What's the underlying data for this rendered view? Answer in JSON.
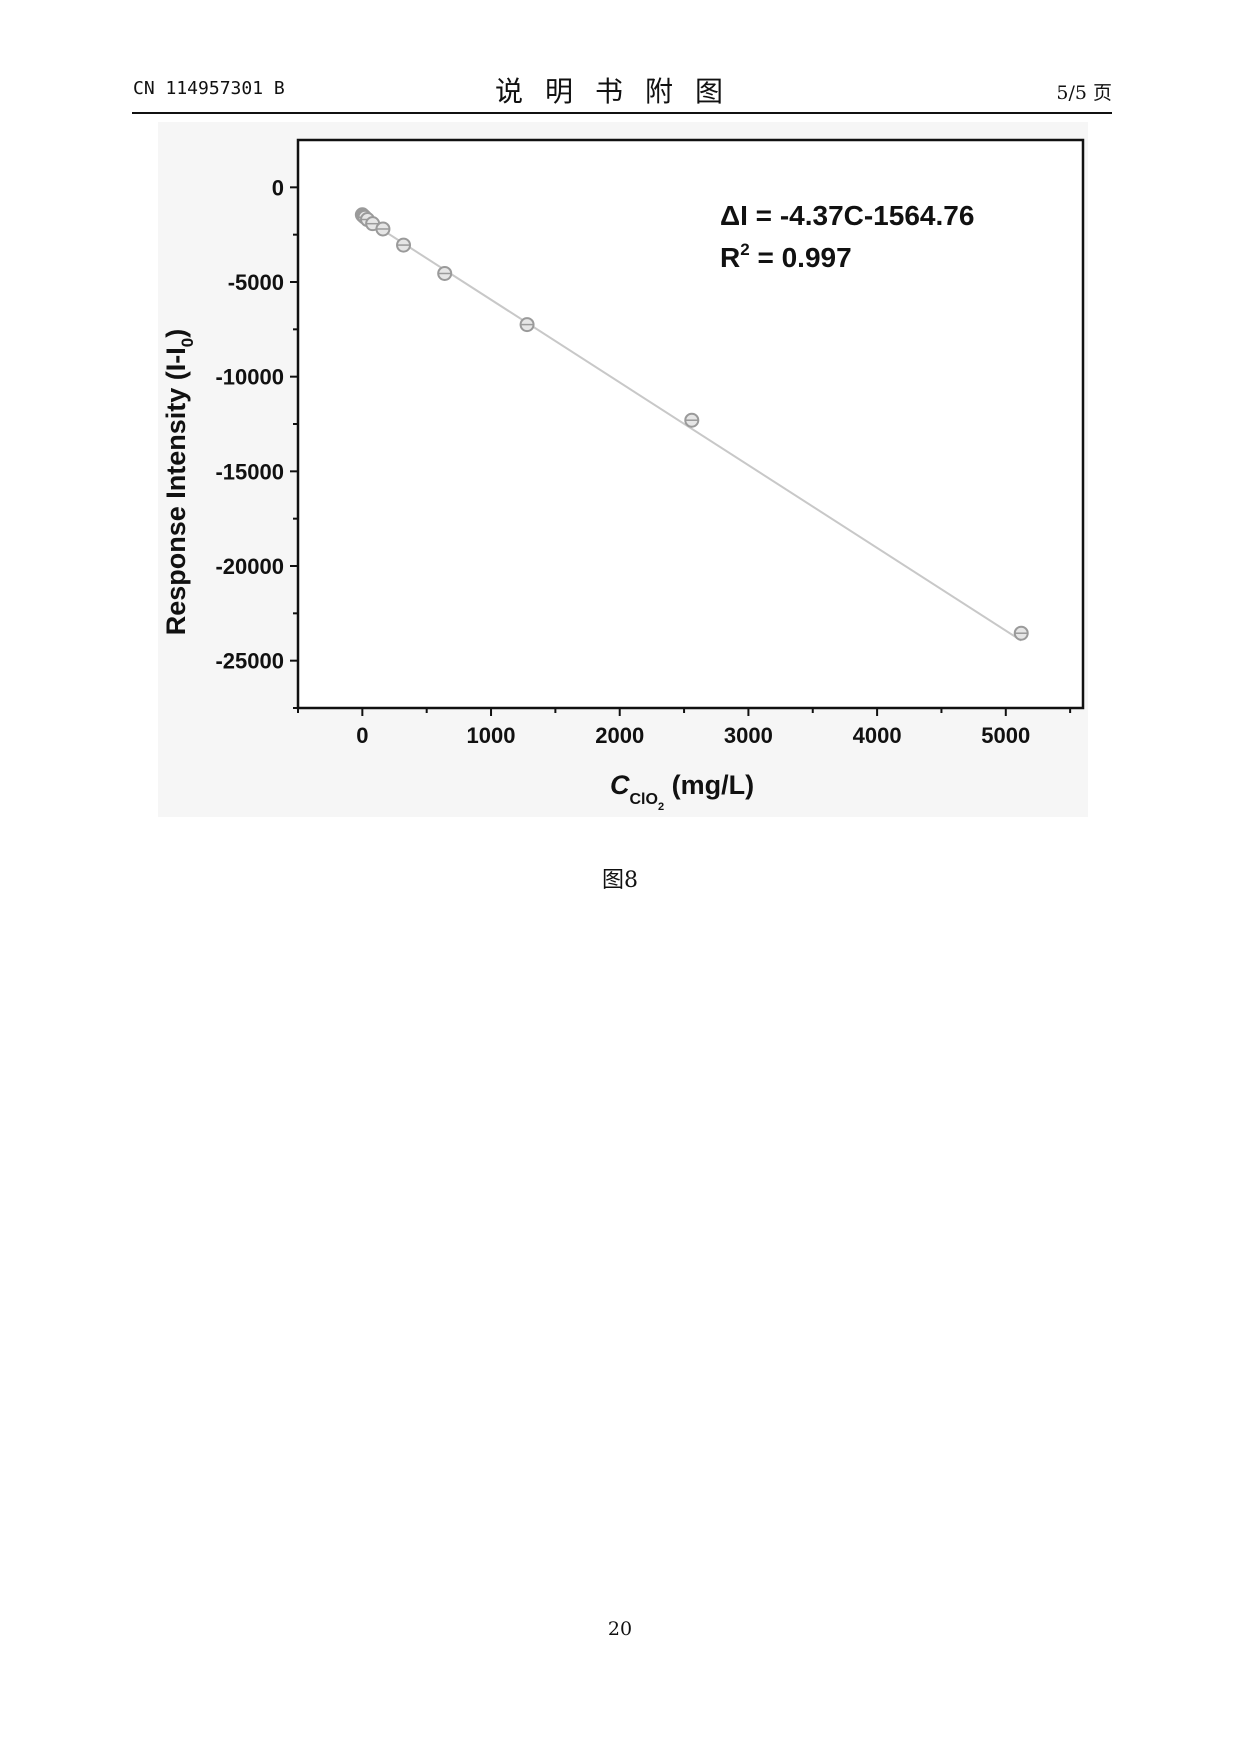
{
  "header": {
    "patent_number": "CN 114957301 B",
    "section_title": "说明书附图",
    "page_of": "5/5 页"
  },
  "caption": "图8",
  "page_number": "20",
  "chart_data": {
    "type": "scatter",
    "title": "",
    "xlabel": {
      "main": "C",
      "sub": "ClO",
      "subsub": "2",
      "unit": " (mg/L)"
    },
    "ylabel": {
      "main": "Response Intensity (I-I",
      "sub": "0",
      "close": ")"
    },
    "xlim": [
      -500,
      5600
    ],
    "ylim": [
      -27500,
      2500
    ],
    "x_ticks": [
      0,
      1000,
      2000,
      3000,
      4000,
      5000
    ],
    "y_ticks": [
      0,
      -5000,
      -10000,
      -15000,
      -20000,
      -25000
    ],
    "grid": false,
    "legend": "none",
    "series": [
      {
        "points": [
          {
            "x": 0,
            "y": -1450
          },
          {
            "x": 10,
            "y": -1520
          },
          {
            "x": 20,
            "y": -1580
          },
          {
            "x": 40,
            "y": -1700
          },
          {
            "x": 80,
            "y": -1920
          },
          {
            "x": 160,
            "y": -2200
          },
          {
            "x": 320,
            "y": -3050
          },
          {
            "x": 640,
            "y": -4550
          },
          {
            "x": 1280,
            "y": -7250
          },
          {
            "x": 2560,
            "y": -12300
          },
          {
            "x": 5120,
            "y": -23550
          }
        ]
      }
    ],
    "fit": {
      "slope": -4.37,
      "intercept": -1564.76,
      "x_range": [
        0,
        5120
      ]
    },
    "annotation": {
      "eq_prefix": "ΔI = -4.37C-1564.76",
      "r2_label": "R",
      "r2_sup": "2",
      "r2_value": " = 0.997"
    },
    "colors": {
      "points": "#9a9a9a",
      "fit_line": "#c8c8c8",
      "axes": "#111111"
    }
  }
}
